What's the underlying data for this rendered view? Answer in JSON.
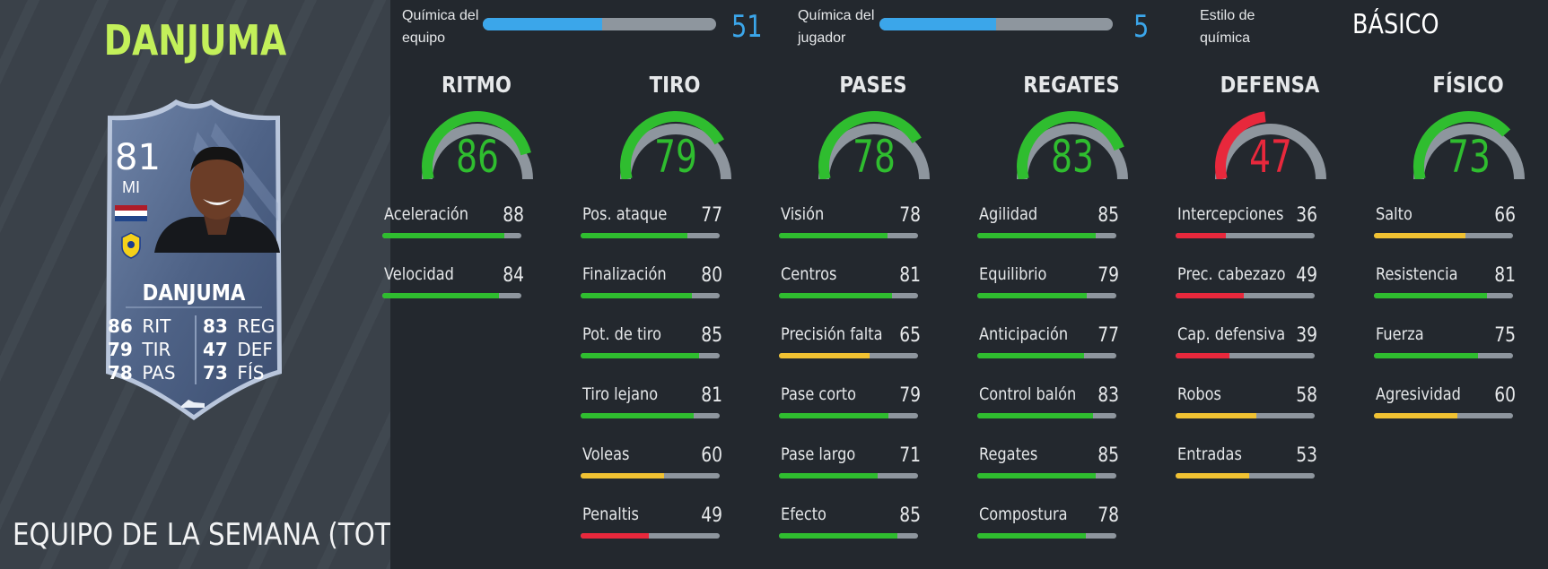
{
  "player": {
    "name": "DANJUMA",
    "promo": "EQUIPO DE LA SEMANA (TOTW)"
  },
  "card": {
    "rating": "81",
    "position": "MI",
    "name": "DANJUMA",
    "stats": [
      {
        "value": "86",
        "label": "RIT"
      },
      {
        "value": "79",
        "label": "TIR"
      },
      {
        "value": "78",
        "label": "PAS"
      },
      {
        "value": "83",
        "label": "REG"
      },
      {
        "value": "47",
        "label": "DEF"
      },
      {
        "value": "73",
        "label": "FÍS"
      }
    ]
  },
  "chemistry": {
    "team_label": "Química del equipo",
    "team_label_l1": "Química del",
    "team_label_l2": "equipo",
    "team_value": "51",
    "team_fraction": 0.51,
    "player_label_l1": "Química del",
    "player_label_l2": "jugador",
    "player_value": "5",
    "player_fraction": 0.5,
    "style_label_l1": "Estilo de",
    "style_label_l2": "química",
    "style_value": "BÁSICO"
  },
  "colors": {
    "green": "#2fbd2f",
    "yellow": "#f1c232",
    "red": "#e8283c",
    "track": "#8e969e",
    "chem_blue": "#3ba6ea",
    "name_green": "#c3f05a"
  },
  "categories": [
    {
      "title": "RITMO",
      "value": "86",
      "color": "green",
      "stats": [
        {
          "label": "Aceleración",
          "value": "88",
          "color": "green"
        },
        {
          "label": "Velocidad",
          "value": "84",
          "color": "green"
        }
      ]
    },
    {
      "title": "TIRO",
      "value": "79",
      "color": "green",
      "stats": [
        {
          "label": "Pos. ataque",
          "value": "77",
          "color": "green"
        },
        {
          "label": "Finalización",
          "value": "80",
          "color": "green"
        },
        {
          "label": "Pot. de tiro",
          "value": "85",
          "color": "green"
        },
        {
          "label": "Tiro lejano",
          "value": "81",
          "color": "green"
        },
        {
          "label": "Voleas",
          "value": "60",
          "color": "yellow"
        },
        {
          "label": "Penaltis",
          "value": "49",
          "color": "red"
        }
      ]
    },
    {
      "title": "PASES",
      "value": "78",
      "color": "green",
      "stats": [
        {
          "label": "Visión",
          "value": "78",
          "color": "green"
        },
        {
          "label": "Centros",
          "value": "81",
          "color": "green"
        },
        {
          "label": "Precisión falta",
          "value": "65",
          "color": "yellow"
        },
        {
          "label": "Pase corto",
          "value": "79",
          "color": "green"
        },
        {
          "label": "Pase largo",
          "value": "71",
          "color": "green"
        },
        {
          "label": "Efecto",
          "value": "85",
          "color": "green"
        }
      ]
    },
    {
      "title": "REGATES",
      "value": "83",
      "color": "green",
      "stats": [
        {
          "label": "Agilidad",
          "value": "85",
          "color": "green"
        },
        {
          "label": "Equilibrio",
          "value": "79",
          "color": "green"
        },
        {
          "label": "Anticipación",
          "value": "77",
          "color": "green"
        },
        {
          "label": "Control balón",
          "value": "83",
          "color": "green"
        },
        {
          "label": "Regates",
          "value": "85",
          "color": "green"
        },
        {
          "label": "Compostura",
          "value": "78",
          "color": "green"
        }
      ]
    },
    {
      "title": "DEFENSA",
      "value": "47",
      "color": "red",
      "stats": [
        {
          "label": "Intercepciones",
          "value": "36",
          "color": "red"
        },
        {
          "label": "Prec. cabezazo",
          "value": "49",
          "color": "red"
        },
        {
          "label": "Cap. defensiva",
          "value": "39",
          "color": "red"
        },
        {
          "label": "Robos",
          "value": "58",
          "color": "yellow"
        },
        {
          "label": "Entradas",
          "value": "53",
          "color": "yellow"
        }
      ]
    },
    {
      "title": "FÍSICO",
      "value": "73",
      "color": "green",
      "stats": [
        {
          "label": "Salto",
          "value": "66",
          "color": "yellow"
        },
        {
          "label": "Resistencia",
          "value": "81",
          "color": "green"
        },
        {
          "label": "Fuerza",
          "value": "75",
          "color": "green"
        },
        {
          "label": "Agresividad",
          "value": "60",
          "color": "yellow"
        }
      ]
    }
  ]
}
